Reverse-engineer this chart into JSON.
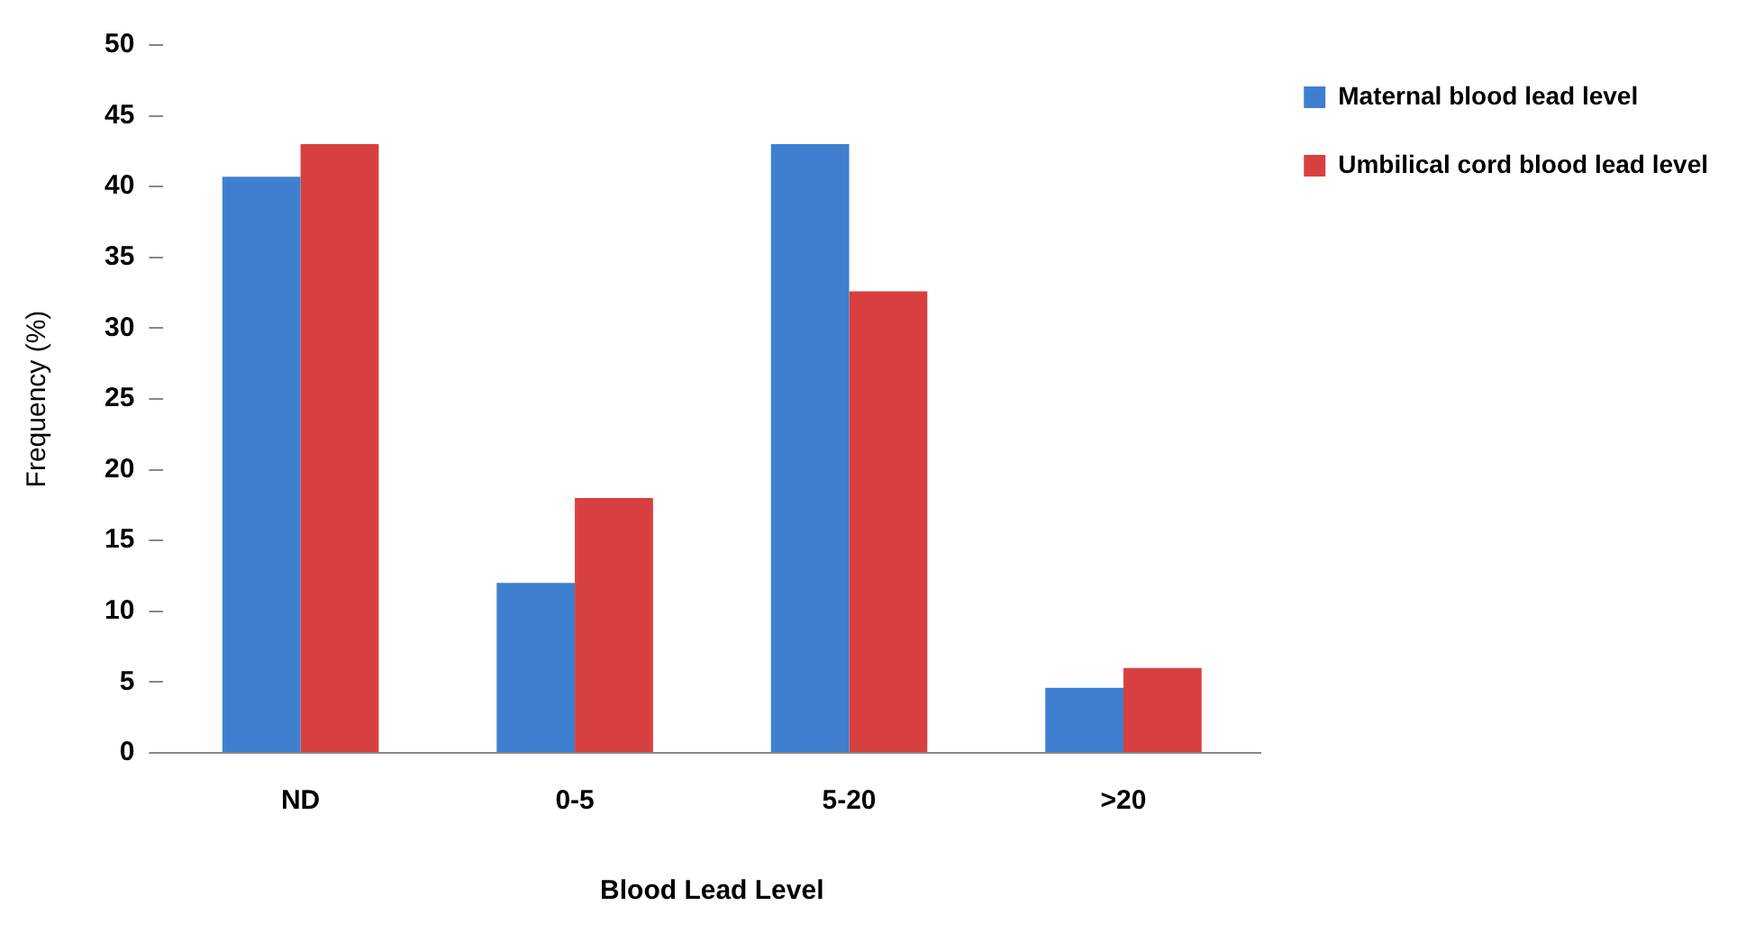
{
  "chart_data": {
    "type": "bar",
    "xlabel": "Blood Lead Level",
    "ylabel": "Frequency (%)",
    "categories": [
      "ND",
      "0-5",
      "5-20",
      ">20"
    ],
    "series": [
      {
        "name": "Maternal blood lead level",
        "color": "#3f7fd0",
        "values": [
          40.7,
          12,
          43,
          4.6
        ]
      },
      {
        "name": "Umbilical cord blood lead level",
        "color": "#d84040",
        "values": [
          43,
          18,
          32.6,
          6
        ]
      }
    ],
    "ylim": [
      0,
      50
    ],
    "yticks": [
      0,
      5,
      10,
      15,
      20,
      25,
      30,
      35,
      40,
      45,
      50
    ],
    "grid": false,
    "legend": "top right"
  }
}
